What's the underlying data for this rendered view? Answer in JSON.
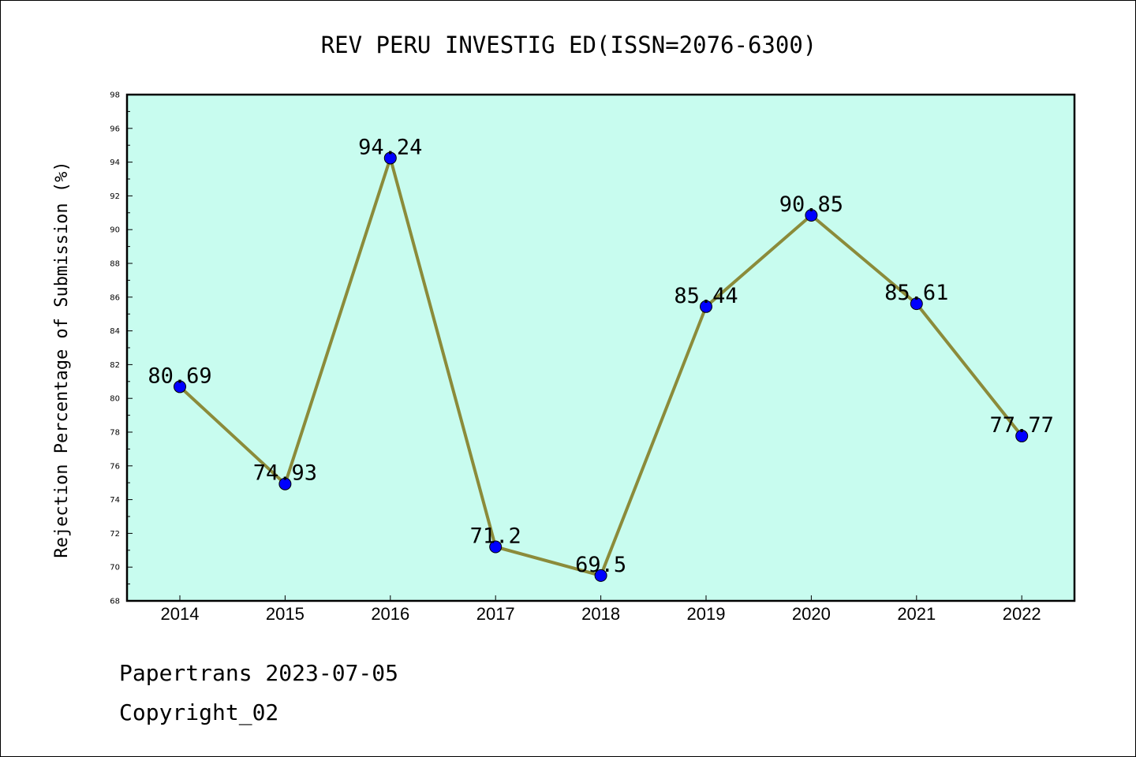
{
  "chart_data": {
    "type": "line",
    "title": "REV PERU INVESTIG ED(ISSN=2076-6300)",
    "xlabel": "",
    "ylabel": "Rejection Percentage of Submission (%)",
    "categories": [
      "2014",
      "2015",
      "2016",
      "2017",
      "2018",
      "2019",
      "2020",
      "2021",
      "2022"
    ],
    "series": [
      {
        "values": [
          80.69,
          74.93,
          94.24,
          71.2,
          69.5,
          85.44,
          90.85,
          85.61,
          77.77
        ],
        "labels": [
          "80.69",
          "74.93",
          "94.24",
          "71.2",
          "69.5",
          "85.44",
          "90.85",
          "85.61",
          "77.77"
        ]
      }
    ],
    "ylim": [
      68,
      98
    ],
    "yticks": [
      "68",
      "70",
      "72",
      "74",
      "76",
      "78",
      "80",
      "82",
      "84",
      "86",
      "88",
      "90",
      "92",
      "94",
      "96",
      "98"
    ],
    "grid": false,
    "colors": {
      "plot_background": "#c8fcef",
      "line": "#8b8b3a",
      "marker": "#0000ff"
    }
  },
  "footer": {
    "date_line": "Papertrans 2023-07-05",
    "copyright_line": "Copyright_02"
  }
}
